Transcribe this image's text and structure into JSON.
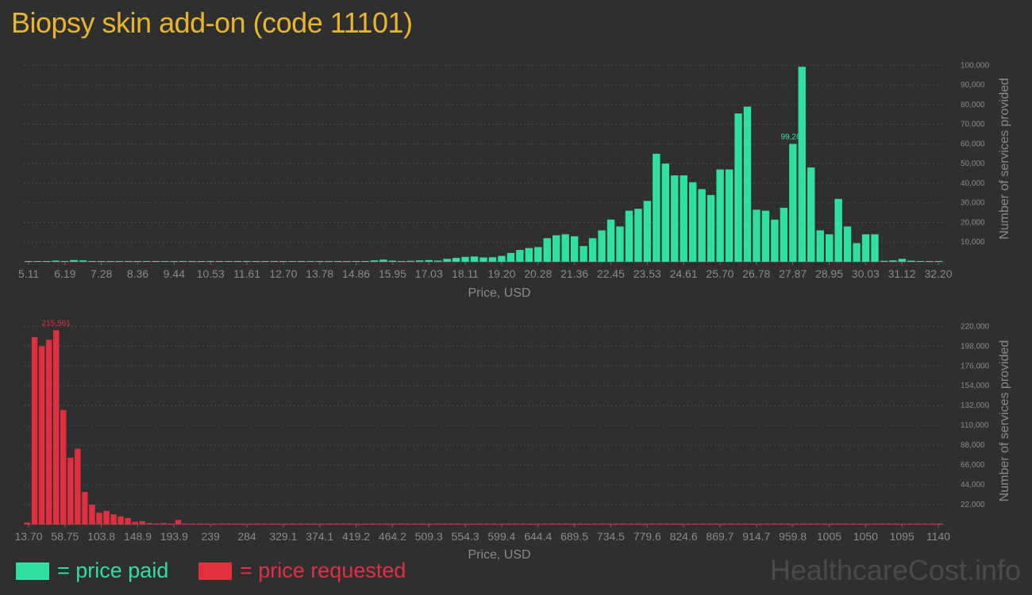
{
  "title": "Biopsy skin add-on (code 11101)",
  "colors": {
    "background": "#2f2f2f",
    "paid": "#2fe0a0",
    "requested": "#e03040",
    "title": "#e9b52c",
    "axis_text": "#8a8a8a",
    "grid": "#4a4a4a"
  },
  "legend": {
    "paid_label": "= price paid",
    "requested_label": "= price requested"
  },
  "brand": "HealthcareCost.info",
  "chart_data": [
    {
      "type": "bar",
      "id": "paid",
      "xlabel": "Price, USD",
      "ylabel": "Number of services provided",
      "ylim": [
        0,
        105000
      ],
      "yticks": [
        10000,
        20000,
        30000,
        40000,
        50000,
        60000,
        70000,
        80000,
        90000,
        100000
      ],
      "ytick_labels": [
        "10,000",
        "20,000",
        "30,000",
        "40,000",
        "50,000",
        "60,000",
        "70,000",
        "80,000",
        "90,000",
        "100,000"
      ],
      "xtick_labels": [
        "5.11",
        "6.19",
        "7.28",
        "8.36",
        "9.44",
        "10.53",
        "11.61",
        "12.70",
        "13.78",
        "14.86",
        "15.95",
        "17.03",
        "18.11",
        "19.20",
        "20.28",
        "21.36",
        "22.45",
        "23.53",
        "24.61",
        "25.70",
        "26.78",
        "27.87",
        "28.95",
        "30.03",
        "31.12",
        "32.20"
      ],
      "peak_label": "99,263",
      "peak_index": 84,
      "values": [
        300,
        200,
        200,
        600,
        400,
        900,
        700,
        200,
        200,
        200,
        100,
        100,
        200,
        100,
        100,
        100,
        100,
        200,
        100,
        100,
        100,
        100,
        100,
        400,
        200,
        100,
        100,
        200,
        300,
        300,
        400,
        300,
        200,
        200,
        300,
        400,
        300,
        400,
        700,
        1100,
        600,
        400,
        500,
        700,
        900,
        600,
        1500,
        2000,
        2500,
        2700,
        2200,
        2300,
        3000,
        4500,
        6000,
        7000,
        7500,
        12000,
        13500,
        14000,
        13000,
        8000,
        12000,
        16000,
        21500,
        18000,
        26000,
        27000,
        31000,
        55000,
        50000,
        44000,
        44000,
        40500,
        37000,
        34000,
        47000,
        47000,
        75500,
        79000,
        26500,
        26000,
        21500,
        27500,
        60000,
        99263,
        48000,
        16000,
        14000,
        32000,
        18000,
        9500,
        14000,
        14000,
        500,
        700,
        1500,
        600,
        400,
        300,
        200
      ]
    },
    {
      "type": "bar",
      "id": "requested",
      "xlabel": "Price, USD",
      "ylabel": "Number of services provided",
      "ylim": [
        0,
        230000
      ],
      "yticks": [
        22000,
        44000,
        66000,
        88000,
        110000,
        132000,
        154000,
        176000,
        198000,
        220000
      ],
      "ytick_labels": [
        "22,000",
        "44,000",
        "66,000",
        "88,000",
        "110,000",
        "132,000",
        "154,000",
        "176,000",
        "198,000",
        "220,000"
      ],
      "xtick_labels": [
        "13.70",
        "58.75",
        "103.8",
        "148.9",
        "193.9",
        "239",
        "284",
        "329.1",
        "374.1",
        "419.2",
        "464.2",
        "509.3",
        "554.3",
        "599.4",
        "644.4",
        "689.5",
        "734.5",
        "779.6",
        "824.6",
        "869.7",
        "914.7",
        "959.8",
        "1005",
        "1050",
        "1095",
        "1140"
      ],
      "peak_label": "215,561",
      "peak_index": 4,
      "values": [
        2000,
        208000,
        198000,
        205000,
        215561,
        127000,
        74000,
        84000,
        36000,
        22000,
        13000,
        15000,
        11000,
        9000,
        7000,
        3000,
        3500,
        1500,
        1000,
        1500,
        700,
        5000,
        1000,
        800,
        500,
        300,
        200,
        200,
        200,
        200,
        200,
        200,
        1000,
        200,
        200,
        200,
        200,
        1000,
        200,
        200,
        200,
        200,
        1000,
        200,
        200,
        200,
        200,
        200,
        200,
        200,
        200,
        200,
        200,
        200,
        200,
        200,
        200,
        200,
        200,
        200,
        200,
        200,
        200,
        200,
        200,
        200,
        200,
        200,
        200,
        200,
        200,
        200,
        200,
        200,
        200,
        200,
        200,
        200,
        200,
        200,
        200,
        200,
        200,
        200,
        200,
        200,
        200,
        200,
        200,
        200,
        200,
        200,
        200,
        200,
        200,
        200,
        200,
        200,
        200,
        200,
        200,
        200,
        200,
        200,
        1000,
        200,
        200,
        200,
        200,
        200,
        200,
        200,
        200,
        200,
        200,
        200,
        200,
        200,
        200,
        200,
        200,
        200,
        200,
        200,
        200,
        200,
        200,
        1000
      ]
    }
  ]
}
